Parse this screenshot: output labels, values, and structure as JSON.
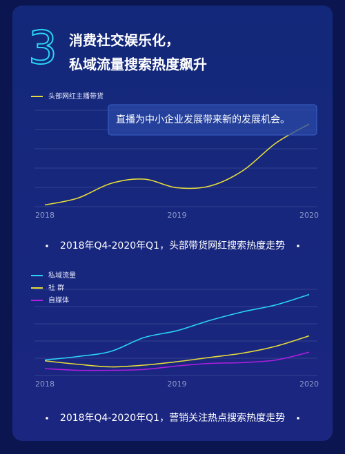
{
  "header": {
    "number": "3",
    "title_lines": [
      "消费社交娱乐化，",
      "私域流量搜索热度飙升"
    ]
  },
  "chart_data": [
    {
      "type": "line",
      "annotation": "直播为中小企业发展带来新的发展机会。",
      "caption": "2018年Q4-2020年Q1，头部带货网红搜索热度走势",
      "x": [
        2018,
        2018.25,
        2018.5,
        2018.75,
        2019,
        2019.25,
        2019.5,
        2019.75,
        2020
      ],
      "xlim": [
        2018,
        2020
      ],
      "xticks": [
        2018,
        2019,
        2020
      ],
      "ylim": [
        0,
        100
      ],
      "series": [
        {
          "name": "头部网红主播带货",
          "color": "#e8dc3a",
          "values": [
            2,
            10,
            27,
            32,
            22,
            24,
            42,
            74,
            96
          ]
        }
      ]
    },
    {
      "type": "line",
      "caption": "2018年Q4-2020年Q1，营销关注热点搜索热度走势",
      "x": [
        2018,
        2018.25,
        2018.5,
        2018.75,
        2019,
        2019.25,
        2019.5,
        2019.75,
        2020
      ],
      "xlim": [
        2018,
        2020
      ],
      "xticks": [
        2018,
        2019,
        2020
      ],
      "ylim": [
        0,
        100
      ],
      "series": [
        {
          "name": "私域流量",
          "color": "#2ad4f5",
          "values": [
            18,
            22,
            28,
            44,
            52,
            64,
            74,
            82,
            94
          ]
        },
        {
          "name": "社 群",
          "color": "#e8dc3a",
          "values": [
            17,
            13,
            10,
            12,
            16,
            21,
            26,
            34,
            46
          ]
        },
        {
          "name": "自媒体",
          "color": "#b01ee0",
          "values": [
            8,
            6,
            6,
            7,
            11,
            14,
            15,
            18,
            27
          ]
        }
      ]
    }
  ]
}
